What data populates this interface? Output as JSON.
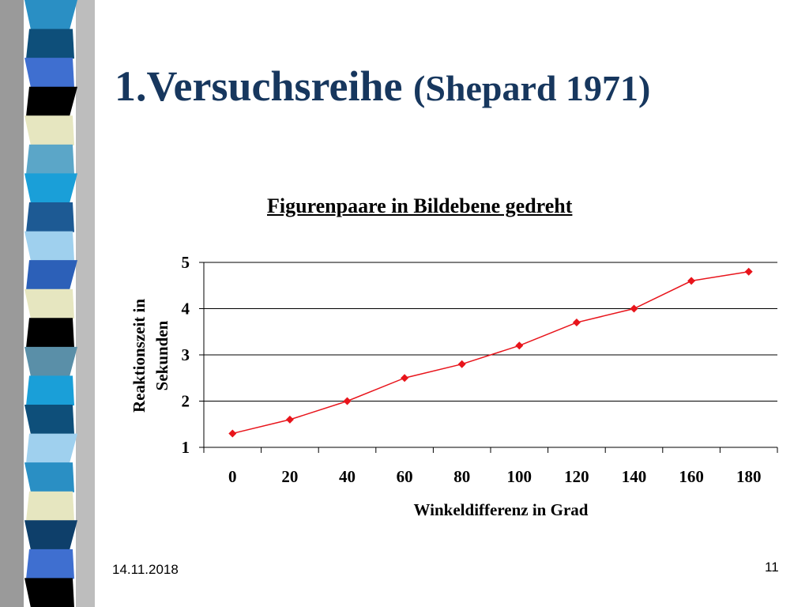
{
  "slide": {
    "title_main": "1.Versuchsreihe ",
    "title_paren": "(Shepard 1971)",
    "date": "14.11.2018",
    "page_number": "11"
  },
  "colors": {
    "title": "#17375e",
    "series": "#e8141b",
    "gridline": "#000000"
  },
  "decor": {
    "strip_colors": [
      "#2a8fc4",
      "#0e4f7a",
      "#3f6fd0",
      "#000000",
      "#e6e6c0",
      "#5ba6c8",
      "#1a9fd8",
      "#1d5a94",
      "#9fd0ee",
      "#2c60b8",
      "#e6e6c0",
      "#000000",
      "#5a8fa8",
      "#1a9fd8",
      "#0e4f7a",
      "#9fd0ee",
      "#2a8fc4",
      "#e6e6c0",
      "#0e3f6a",
      "#3f6fd0",
      "#000000"
    ]
  },
  "chart_data": {
    "type": "line",
    "title": "Figurenpaare in Bildebene gedreht",
    "xlabel": "Winkeldifferenz in Grad",
    "ylabel_lines": [
      "Reaktionszeit in",
      "Sekunden"
    ],
    "categories": [
      "0",
      "20",
      "40",
      "60",
      "80",
      "100",
      "120",
      "140",
      "160",
      "180"
    ],
    "y_ticks": [
      "1",
      "2",
      "3",
      "4",
      "5"
    ],
    "ylim": [
      1,
      5
    ],
    "grid": true,
    "legend": "none",
    "series": [
      {
        "values": [
          1.3,
          1.6,
          2.0,
          2.5,
          2.8,
          3.2,
          3.7,
          4.0,
          4.6,
          4.8
        ]
      }
    ]
  }
}
